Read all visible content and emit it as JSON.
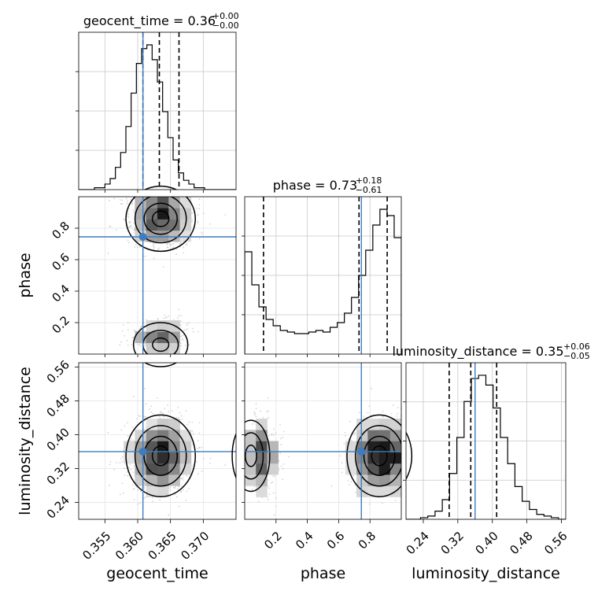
{
  "chart_data": {
    "type": "scatter",
    "subtype": "corner",
    "parameters": [
      {
        "name": "geocent_time",
        "label": "geocent_time",
        "range": [
          0.351,
          0.375
        ],
        "ticks": [
          0.355,
          0.36,
          0.365,
          0.37
        ],
        "tick_labels": [
          "0.355",
          "0.360",
          "0.365",
          "0.370"
        ],
        "median": 0.3633,
        "q_low": 0.3608,
        "q_high": 0.3663,
        "truth": 0.3608,
        "title": "geocent_time = 0.36",
        "title_sup": "+0.00",
        "title_sub": "−0.00"
      },
      {
        "name": "phase",
        "label": "phase",
        "range": [
          0.0,
          1.0
        ],
        "ticks": [
          0.2,
          0.4,
          0.6,
          0.8
        ],
        "tick_labels": [
          "0.2",
          "0.4",
          "0.6",
          "0.8"
        ],
        "median": 0.73,
        "q_low": 0.12,
        "q_high": 0.91,
        "truth": 0.745,
        "title": "phase = 0.73",
        "title_sup": "+0.18",
        "title_sub": "−0.61"
      },
      {
        "name": "luminosity_distance",
        "label": "luminosity_distance",
        "range": [
          0.2,
          0.57
        ],
        "ticks": [
          0.24,
          0.32,
          0.4,
          0.48,
          0.56
        ],
        "tick_labels": [
          "0.24",
          "0.32",
          "0.40",
          "0.48",
          "0.56"
        ],
        "median": 0.35,
        "q_low": 0.3,
        "q_high": 0.41,
        "truth": 0.36,
        "title": "luminosity_distance = 0.35",
        "title_sup": "+0.06",
        "title_sub": "−0.05"
      }
    ],
    "histograms": {
      "geocent_time": [
        0,
        0,
        0,
        1,
        1,
        3,
        6,
        12,
        20,
        34,
        52,
        68,
        76,
        78,
        70,
        58,
        42,
        28,
        16,
        9,
        5,
        3,
        1,
        1,
        0,
        0,
        0,
        0,
        0,
        0
      ],
      "phase": [
        65,
        44,
        30,
        22,
        18,
        15,
        14,
        13,
        13,
        14,
        15,
        14,
        17,
        20,
        26,
        36,
        50,
        66,
        82,
        92,
        88,
        74
      ],
      "luminosity_distance": [
        0,
        0,
        1,
        2,
        5,
        12,
        28,
        50,
        72,
        86,
        88,
        82,
        68,
        50,
        34,
        20,
        11,
        6,
        3,
        2,
        1,
        0
      ]
    },
    "grid": true,
    "colors": {
      "truth": "#3f7bbf",
      "hist": "#000000",
      "points": "#b8b8b8"
    }
  }
}
